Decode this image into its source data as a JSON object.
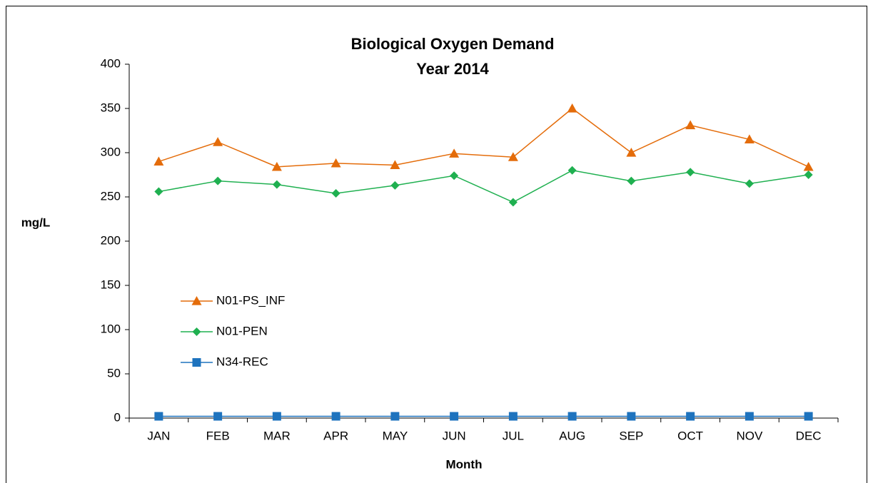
{
  "chart_data": {
    "type": "line",
    "title": "Biological Oxygen Demand",
    "subtitle": "Year 2014",
    "x_label": "Month",
    "y_label": "mg/L",
    "categories": [
      "JAN",
      "FEB",
      "MAR",
      "APR",
      "MAY",
      "JUN",
      "JUL",
      "AUG",
      "SEP",
      "OCT",
      "NOV",
      "DEC"
    ],
    "series": [
      {
        "name": "N01-PS_INF",
        "color": "#e46c0a",
        "marker": "triangle",
        "values": [
          290,
          312,
          284,
          288,
          286,
          299,
          295,
          350,
          300,
          331,
          315,
          284
        ]
      },
      {
        "name": "N01-PEN",
        "color": "#1fb050",
        "marker": "diamond",
        "values": [
          256,
          268,
          264,
          254,
          263,
          274,
          244,
          280,
          268,
          278,
          265,
          275
        ]
      },
      {
        "name": "N34-REC",
        "color": "#1e73be",
        "marker": "square",
        "values": [
          2,
          2,
          2,
          2,
          2,
          2,
          2,
          2,
          2,
          2,
          2,
          2
        ]
      }
    ],
    "ylim": [
      0,
      400
    ],
    "yticks": [
      0,
      50,
      100,
      150,
      200,
      250,
      300,
      350,
      400
    ],
    "grid": false,
    "legend": "left"
  }
}
